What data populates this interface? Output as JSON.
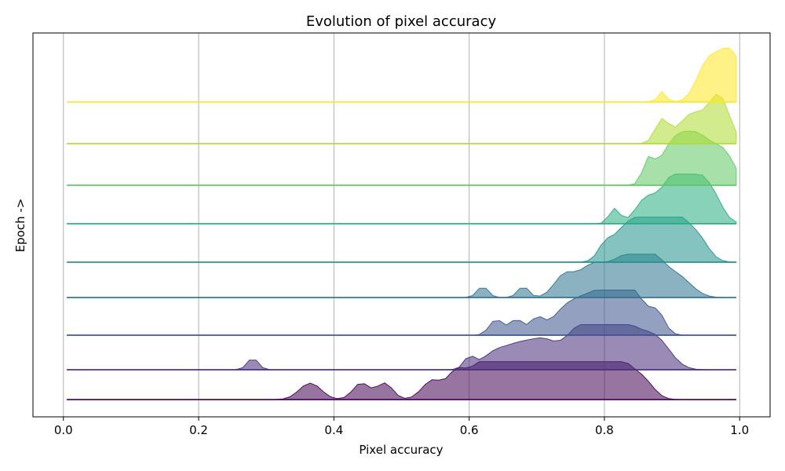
{
  "chart_data": {
    "type": "area",
    "title": "Evolution of pixel accuracy",
    "xlabel": "Pixel accuracy",
    "ylabel": "Epoch ->",
    "xlim": [
      -0.045,
      1.045
    ],
    "x_ticks": [
      "0.0",
      "0.2",
      "0.4",
      "0.6",
      "0.8",
      "1.0"
    ],
    "x_tick_values": [
      0,
      0.2,
      0.4,
      0.6,
      0.8,
      1.0
    ],
    "grid": "vertical",
    "ridgeline": {
      "x_start": 0.005,
      "x_end": 0.995,
      "x_step": 0.01,
      "fill_opacity": 0.55,
      "series": [
        {
          "color": "#440154",
          "peaks": [
            [
              0.365,
              0.5,
              0.016
            ],
            [
              0.44,
              0.5,
              0.012
            ],
            [
              0.475,
              0.5,
              0.012
            ],
            [
              0.545,
              0.55,
              0.015
            ],
            [
              0.58,
              0.5,
              0.012
            ],
            [
              0.62,
              0.7,
              0.03
            ],
            [
              0.66,
              0.8,
              0.04
            ],
            [
              0.71,
              1.0,
              0.04
            ],
            [
              0.76,
              0.9,
              0.03
            ],
            [
              0.8,
              0.8,
              0.02
            ],
            [
              0.83,
              0.8,
              0.02
            ],
            [
              0.86,
              0.4,
              0.015
            ]
          ]
        },
        {
          "color": "#472c7a",
          "peaks": [
            [
              0.28,
              0.3,
              0.008
            ],
            [
              0.6,
              0.3,
              0.008
            ],
            [
              0.64,
              0.45,
              0.02
            ],
            [
              0.68,
              0.6,
              0.02
            ],
            [
              0.71,
              0.4,
              0.015
            ],
            [
              0.76,
              0.85,
              0.03
            ],
            [
              0.8,
              1.0,
              0.025
            ],
            [
              0.84,
              0.8,
              0.03
            ],
            [
              0.88,
              0.5,
              0.02
            ]
          ]
        },
        {
          "color": "#3b528b",
          "peaks": [
            [
              0.64,
              0.4,
              0.01
            ],
            [
              0.67,
              0.4,
              0.01
            ],
            [
              0.7,
              0.4,
              0.01
            ],
            [
              0.74,
              0.5,
              0.02
            ],
            [
              0.78,
              0.9,
              0.025
            ],
            [
              0.82,
              1.0,
              0.02
            ],
            [
              0.85,
              0.7,
              0.02
            ],
            [
              0.88,
              0.4,
              0.01
            ]
          ]
        },
        {
          "color": "#2c728e",
          "peaks": [
            [
              0.62,
              0.3,
              0.008
            ],
            [
              0.68,
              0.3,
              0.008
            ],
            [
              0.74,
              0.55,
              0.015
            ],
            [
              0.78,
              0.75,
              0.02
            ],
            [
              0.83,
              1.0,
              0.025
            ],
            [
              0.87,
              0.9,
              0.02
            ],
            [
              0.91,
              0.5,
              0.02
            ]
          ]
        },
        {
          "color": "#21918c",
          "peaks": [
            [
              0.8,
              0.3,
              0.01
            ],
            [
              0.83,
              0.6,
              0.02
            ],
            [
              0.87,
              0.85,
              0.03
            ],
            [
              0.9,
              1.0,
              0.025
            ],
            [
              0.94,
              0.4,
              0.015
            ]
          ]
        },
        {
          "color": "#27ad81",
          "peaks": [
            [
              0.815,
              0.35,
              0.008
            ],
            [
              0.86,
              0.5,
              0.015
            ],
            [
              0.9,
              0.85,
              0.02
            ],
            [
              0.93,
              1.0,
              0.02
            ],
            [
              0.96,
              0.5,
              0.015
            ]
          ]
        },
        {
          "color": "#5ec962",
          "peaks": [
            [
              0.865,
              0.45,
              0.008
            ],
            [
              0.9,
              0.7,
              0.02
            ],
            [
              0.94,
              1.0,
              0.025
            ],
            [
              0.98,
              0.45,
              0.015
            ]
          ]
        },
        {
          "color": "#addc30",
          "peaks": [
            [
              0.885,
              0.5,
              0.01
            ],
            [
              0.93,
              0.65,
              0.02
            ],
            [
              0.97,
              1.0,
              0.015
            ]
          ]
        },
        {
          "color": "#fde725",
          "peaks": [
            [
              0.885,
              0.2,
              0.006
            ],
            [
              0.95,
              0.6,
              0.015
            ],
            [
              0.985,
              1.0,
              0.02
            ]
          ]
        }
      ]
    }
  }
}
